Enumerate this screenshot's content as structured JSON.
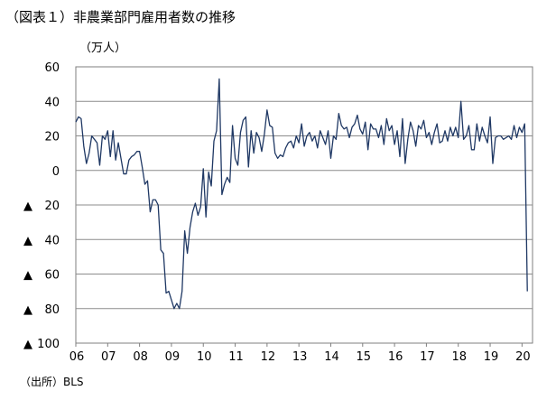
{
  "header": {
    "title": "（図表１）非農業部門雇用者数の推移",
    "unit": "（万人）"
  },
  "footer": {
    "source": "（出所）BLS"
  },
  "chart_data": {
    "type": "line",
    "title": "非農業部門雇用者数の推移",
    "ylabel": "万人",
    "ylim": [
      -100,
      60
    ],
    "xlim": [
      2006,
      2020.33
    ],
    "grid": "horizontal",
    "y_ticks": [
      {
        "value": 60,
        "label": "60",
        "neg": false
      },
      {
        "value": 40,
        "label": "40",
        "neg": false
      },
      {
        "value": 20,
        "label": "20",
        "neg": false
      },
      {
        "value": 0,
        "label": "0",
        "neg": false
      },
      {
        "value": -20,
        "label": "20",
        "neg": true
      },
      {
        "value": -40,
        "label": "40",
        "neg": true
      },
      {
        "value": -60,
        "label": "60",
        "neg": true
      },
      {
        "value": -80,
        "label": "80",
        "neg": true
      },
      {
        "value": -100,
        "label": "100",
        "neg": true
      }
    ],
    "negative_marker": "▲",
    "x_ticks": [
      "06",
      "07",
      "08",
      "09",
      "10",
      "11",
      "12",
      "13",
      "14",
      "15",
      "16",
      "17",
      "18",
      "19",
      "20"
    ],
    "line_color": "#1f3864",
    "series": [
      {
        "frequency": "monthly",
        "start": "2006-01",
        "values": [
          28,
          31,
          30,
          14,
          4,
          10,
          20,
          18,
          16,
          3,
          20,
          18,
          23,
          8,
          23,
          6,
          16,
          7,
          -2,
          -2,
          6,
          8,
          9,
          11,
          11,
          2,
          -8,
          -6,
          -24,
          -17,
          -17,
          -20,
          -46,
          -48,
          -71,
          -70,
          -75,
          -80,
          -77,
          -80,
          -70,
          -35,
          -48,
          -33,
          -24,
          -19,
          -26,
          -21,
          1,
          -27,
          -1,
          -9,
          17,
          23,
          53,
          -14,
          -8,
          -4,
          -7,
          26,
          7,
          3,
          22,
          29,
          31,
          2,
          23,
          10,
          22,
          19,
          11,
          21,
          35,
          26,
          25,
          10,
          7,
          9,
          8,
          13,
          16,
          17,
          13,
          20,
          16,
          27,
          14,
          20,
          22,
          17,
          20,
          13,
          23,
          19,
          15,
          23,
          7,
          20,
          18,
          33,
          26,
          24,
          25,
          19,
          25,
          27,
          32,
          24,
          21,
          28,
          12,
          27,
          24,
          24,
          19,
          26,
          15,
          30,
          23,
          26,
          15,
          23,
          8,
          30,
          4,
          18,
          28,
          23,
          14,
          26,
          24,
          29,
          19,
          22,
          15,
          22,
          27,
          16,
          17,
          23,
          17,
          25,
          20,
          25,
          19,
          40,
          18,
          20,
          26,
          12,
          12,
          27,
          17,
          25,
          20,
          16,
          31,
          4,
          19,
          20,
          20,
          18,
          19,
          20,
          18,
          26,
          19,
          25,
          22,
          27,
          -70
        ]
      }
    ]
  }
}
